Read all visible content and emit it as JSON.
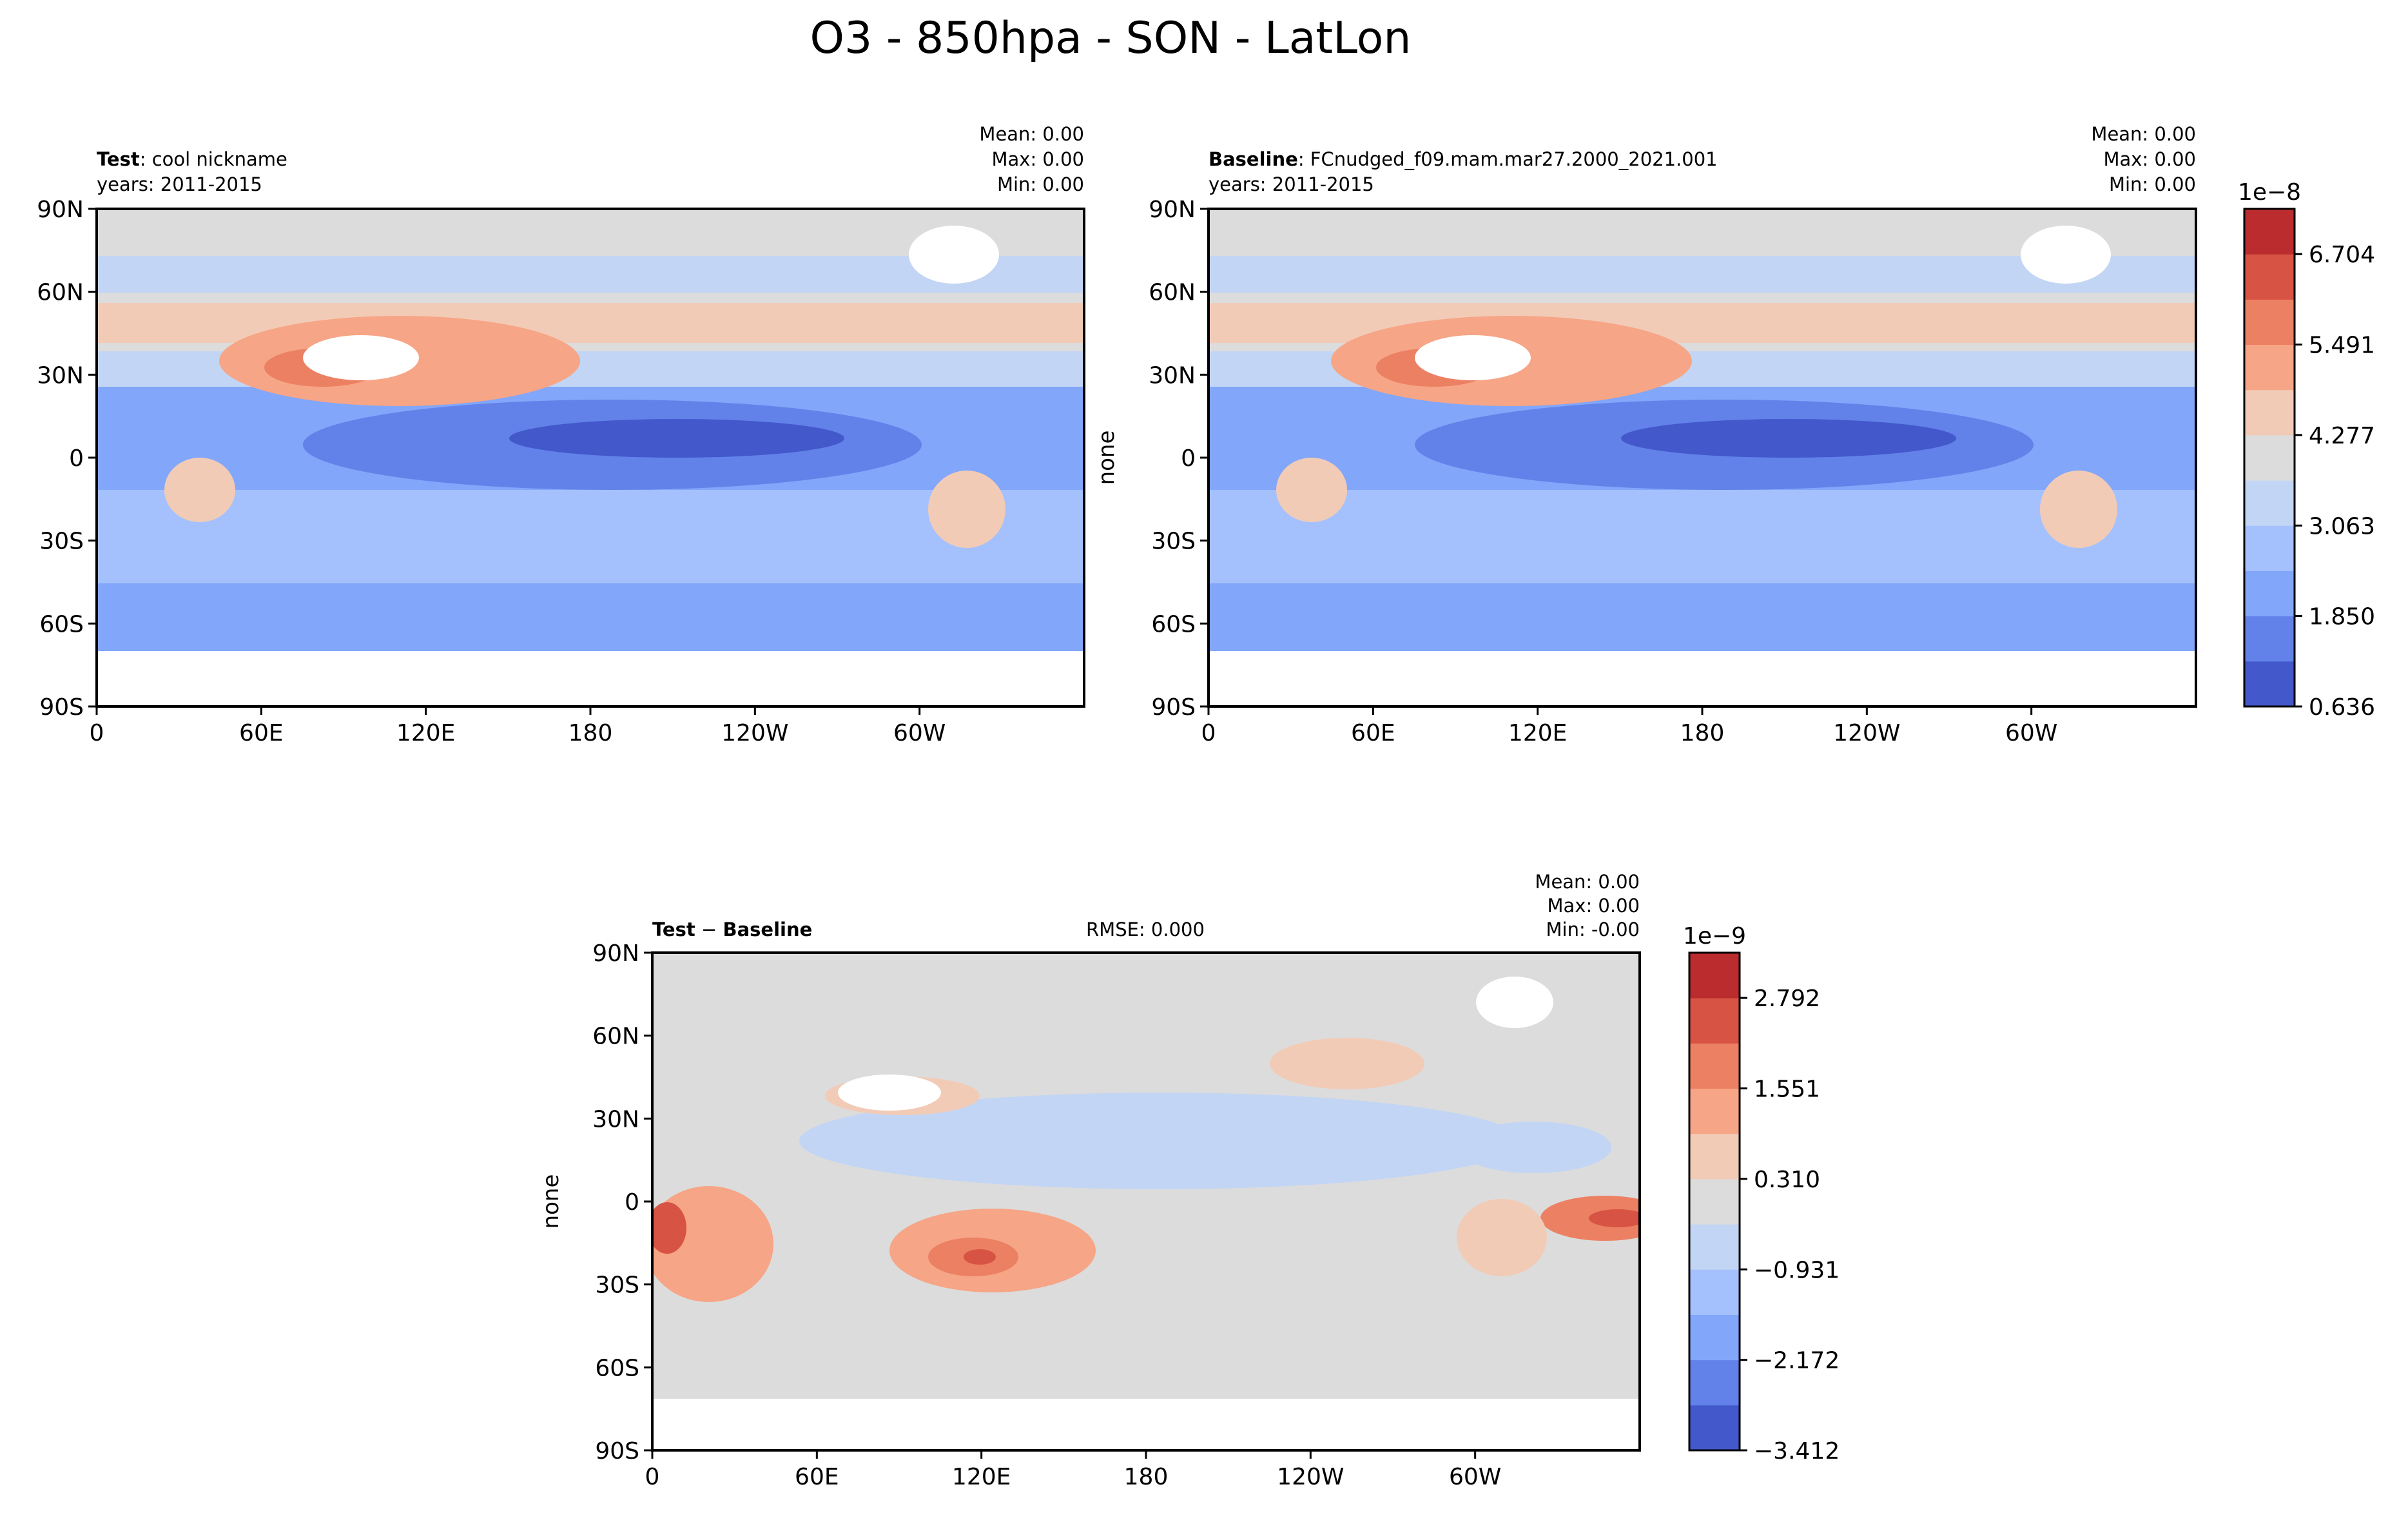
{
  "figure": {
    "title": "O3 - 850hpa - SON - LatLon"
  },
  "chart_data": [
    {
      "type": "heatmap",
      "panel": "test",
      "label_bold": "Test",
      "label_rest": ": cool nickname",
      "years": "years: 2011-2015",
      "ylabel": "",
      "stats": [
        "Mean:  0.00",
        "Max:  0.00",
        "Min:  0.00"
      ],
      "x_ticks": [
        "0",
        "60E",
        "120E",
        "180",
        "120W",
        "60W"
      ],
      "y_ticks": [
        "90N",
        "60N",
        "30N",
        "0",
        "30S",
        "60S",
        "90S"
      ],
      "xlim": [
        0,
        360
      ],
      "ylim": [
        -90,
        90
      ]
    },
    {
      "type": "heatmap",
      "panel": "baseline",
      "label_bold": "Baseline",
      "label_rest": ": FCnudged_f09.mam.mar27.2000_2021.001",
      "years": "years: 2011-2015",
      "ylabel": "none",
      "stats": [
        "Mean:  0.00",
        "Max:  0.00",
        "Min:  0.00"
      ],
      "x_ticks": [
        "0",
        "60E",
        "120E",
        "180",
        "120W",
        "60W"
      ],
      "y_ticks": [
        "90N",
        "60N",
        "30N",
        "0",
        "30S",
        "60S",
        "90S"
      ],
      "xlim": [
        0,
        360
      ],
      "ylim": [
        -90,
        90
      ],
      "colorbar": {
        "exponent": "1e−8",
        "tick_labels": [
          "0.636",
          "1.850",
          "3.063",
          "4.277",
          "5.491",
          "6.704"
        ],
        "tick_values": [
          0.636,
          1.85,
          3.063,
          4.277,
          5.491,
          6.704
        ],
        "range": [
          0.636,
          7.311
        ],
        "colors": [
          "#4358cb",
          "#6282e9",
          "#82a6fa",
          "#a4c1fe",
          "#c3d5f4",
          "#dcdcdc",
          "#f2cbb7",
          "#f6a586",
          "#ec8063",
          "#d75344",
          "#ba2c2e"
        ]
      }
    },
    {
      "type": "heatmap",
      "panel": "difference",
      "label_bold": "Test",
      "label_minus": " − ",
      "label_bold2": "Baseline",
      "rmse": "RMSE: 0.000",
      "ylabel": "none",
      "stats": [
        "Mean:  0.00",
        "Max:  0.00",
        "Min: -0.00"
      ],
      "x_ticks": [
        "0",
        "60E",
        "120E",
        "180",
        "120W",
        "60W"
      ],
      "y_ticks": [
        "90N",
        "60N",
        "30N",
        "0",
        "30S",
        "60S",
        "90S"
      ],
      "xlim": [
        0,
        360
      ],
      "ylim": [
        -90,
        90
      ],
      "colorbar": {
        "exponent": "1e−9",
        "tick_labels": [
          "−3.412",
          "−2.172",
          "−0.931",
          "0.310",
          "1.551",
          "2.792"
        ],
        "tick_values": [
          -3.412,
          -2.172,
          -0.931,
          0.31,
          1.551,
          2.792
        ],
        "range": [
          -3.412,
          3.412
        ],
        "colors": [
          "#4358cb",
          "#6282e9",
          "#82a6fa",
          "#a4c1fe",
          "#c3d5f4",
          "#dcdcdc",
          "#f2cbb7",
          "#f6a586",
          "#ec8063",
          "#d75344",
          "#ba2c2e"
        ]
      }
    }
  ]
}
